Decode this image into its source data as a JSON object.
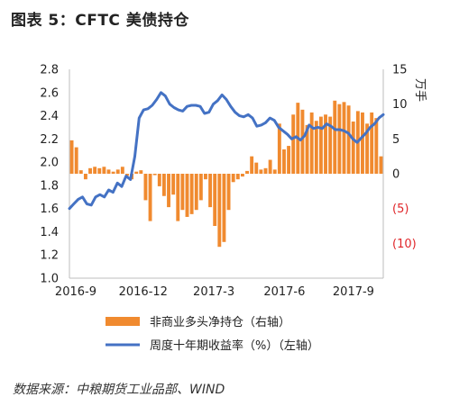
{
  "figure_title": "图表 5：CFTC 美债持仓",
  "source": "数据来源：中粮期货工业品部、WIND",
  "colors": {
    "bar": "#f08a2f",
    "line": "#4472c4",
    "negative_label": "#e0262a",
    "axis": "#bdbdbd"
  },
  "chart_data": {
    "type": "bar+line",
    "x_tick_labels": [
      "2016-9",
      "2016-12",
      "2017-3",
      "2017-6",
      "2017-9"
    ],
    "left_axis": {
      "ylim": [
        1.0,
        2.8
      ],
      "ticks": [
        "1.0",
        "1.2",
        "1.4",
        "1.6",
        "1.8",
        "2.0",
        "2.2",
        "2.4",
        "2.6",
        "2.8"
      ]
    },
    "right_axis": {
      "label": "万手",
      "ylim": [
        -15,
        15
      ],
      "ticks": [
        "15",
        "10",
        "5",
        "0",
        "(5)",
        "(10)"
      ]
    },
    "series": [
      {
        "name": "非商业多头净持仓（右轴）",
        "type": "bar",
        "axis": "right",
        "values": [
          4.8,
          3.8,
          0.5,
          -0.8,
          0.8,
          1.0,
          0.8,
          1.0,
          0.6,
          0.3,
          0.6,
          1.0,
          -0.3,
          -0.8,
          0.3,
          0.5,
          -3.8,
          -6.8,
          -0.2,
          -1.8,
          -3.2,
          -4.8,
          -3.0,
          -6.8,
          -5.2,
          -6.2,
          -5.8,
          -5.2,
          -3.8,
          -0.8,
          -4.8,
          -7.5,
          -10.5,
          -9.8,
          -5.2,
          -1.2,
          -0.8,
          -0.4,
          0.4,
          2.5,
          1.6,
          0.6,
          0.8,
          2.0,
          0.6,
          7.2,
          3.5,
          4.0,
          8.5,
          10.2,
          9.2,
          7.0,
          8.8,
          7.6,
          8.2,
          8.5,
          8.2,
          10.5,
          10.0,
          10.3,
          9.8,
          7.5,
          9.0,
          8.8,
          7.2,
          8.8,
          8.0,
          2.5
        ],
        "series_label_key": "legend.bars"
      },
      {
        "name": "周度十年期收益率（%）（左轴）",
        "type": "line",
        "axis": "left",
        "values": [
          1.6,
          1.64,
          1.68,
          1.7,
          1.64,
          1.63,
          1.7,
          1.72,
          1.7,
          1.76,
          1.74,
          1.82,
          1.79,
          1.88,
          1.85,
          2.05,
          2.38,
          2.45,
          2.46,
          2.49,
          2.54,
          2.6,
          2.57,
          2.5,
          2.47,
          2.45,
          2.44,
          2.48,
          2.49,
          2.49,
          2.48,
          2.42,
          2.43,
          2.5,
          2.53,
          2.58,
          2.54,
          2.48,
          2.43,
          2.4,
          2.39,
          2.41,
          2.38,
          2.31,
          2.32,
          2.34,
          2.38,
          2.36,
          2.3,
          2.27,
          2.24,
          2.2,
          2.22,
          2.19,
          2.23,
          2.32,
          2.29,
          2.3,
          2.29,
          2.33,
          2.31,
          2.28,
          2.28,
          2.27,
          2.25,
          2.2,
          2.17,
          2.21,
          2.25,
          2.3,
          2.33,
          2.38,
          2.41
        ]
      }
    ],
    "legend": {
      "placement": "bottom",
      "bars": "非商业多头净持仓（右轴）",
      "line": "周度十年期收益率（%）（左轴）"
    }
  }
}
